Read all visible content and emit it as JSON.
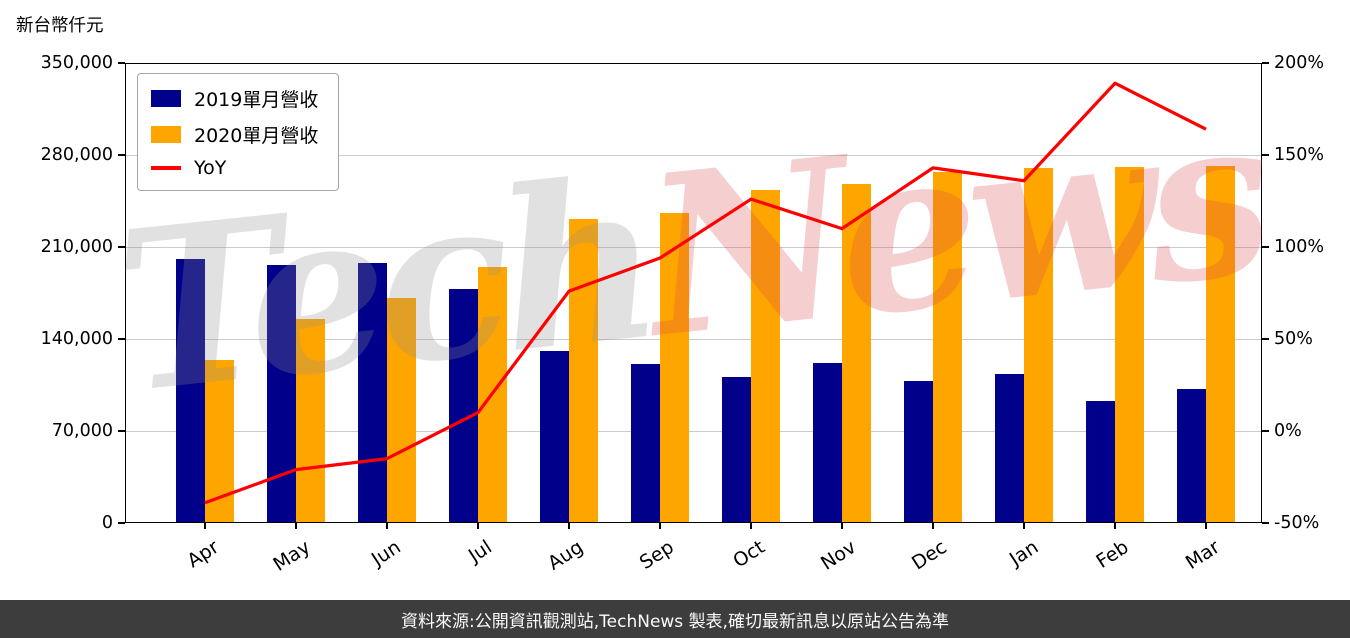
{
  "page": {
    "unit_label": "新台幣仟元",
    "watermark": {
      "part1": "Tech",
      "part2": "News"
    },
    "footer": "資料來源:公開資訊觀測站,TechNews 製表,確切最新訊息以原站公告為準"
  },
  "chart_data": {
    "type": "bar",
    "title": "",
    "categories": [
      "Apr",
      "May",
      "Jun",
      "Jul",
      "Aug",
      "Sep",
      "Oct",
      "Nov",
      "Dec",
      "Jan",
      "Feb",
      "Mar"
    ],
    "series": [
      {
        "name": "2019單月營收",
        "type": "bar",
        "axis": "left",
        "color": "#00008b",
        "values": [
          201000,
          196000,
          198000,
          178000,
          131000,
          121000,
          111000,
          122000,
          108000,
          113000,
          93000,
          102000
        ]
      },
      {
        "name": "2020單月營收",
        "type": "bar",
        "axis": "left",
        "color": "#ffa500",
        "values": [
          124000,
          155000,
          171000,
          195000,
          231000,
          236000,
          253000,
          258000,
          267000,
          270000,
          271000,
          272000
        ]
      },
      {
        "name": "YoY",
        "type": "line",
        "axis": "right",
        "color": "#ff0000",
        "values": [
          -39,
          -21,
          -15,
          10,
          76,
          94,
          126,
          110,
          143,
          136,
          189,
          164
        ]
      }
    ],
    "left_axis": {
      "label": "新台幣仟元",
      "min": 0,
      "max": 350000,
      "ticks": [
        0,
        70000,
        140000,
        210000,
        280000,
        350000
      ],
      "tick_labels": [
        "0",
        "70,000",
        "140,000",
        "210,000",
        "280,000",
        "350,000"
      ]
    },
    "right_axis": {
      "min": -50,
      "max": 200,
      "ticks": [
        -50,
        0,
        50,
        100,
        150,
        200
      ],
      "tick_labels": [
        "-50%",
        "0%",
        "50%",
        "100%",
        "150%",
        "200%"
      ]
    },
    "grid": true,
    "legend_position": "top-left"
  }
}
